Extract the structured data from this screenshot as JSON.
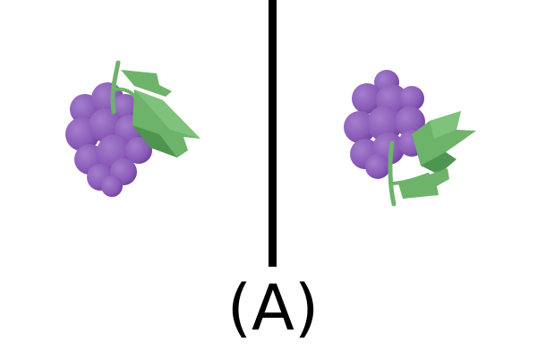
{
  "figure": {
    "label": "(A)",
    "panels": [
      {
        "id": "left",
        "object_icon": "grape-bunch-icon"
      },
      {
        "id": "right",
        "object_icon": "grape-bunch-icon"
      }
    ]
  },
  "colors": {
    "grape": "#8a5bb8",
    "grape_shadow": "#6f449c",
    "grape_highlight": "#a47fcc",
    "leaf": "#6db36a",
    "leaf_dark": "#4f9450",
    "divider": "#000000"
  }
}
